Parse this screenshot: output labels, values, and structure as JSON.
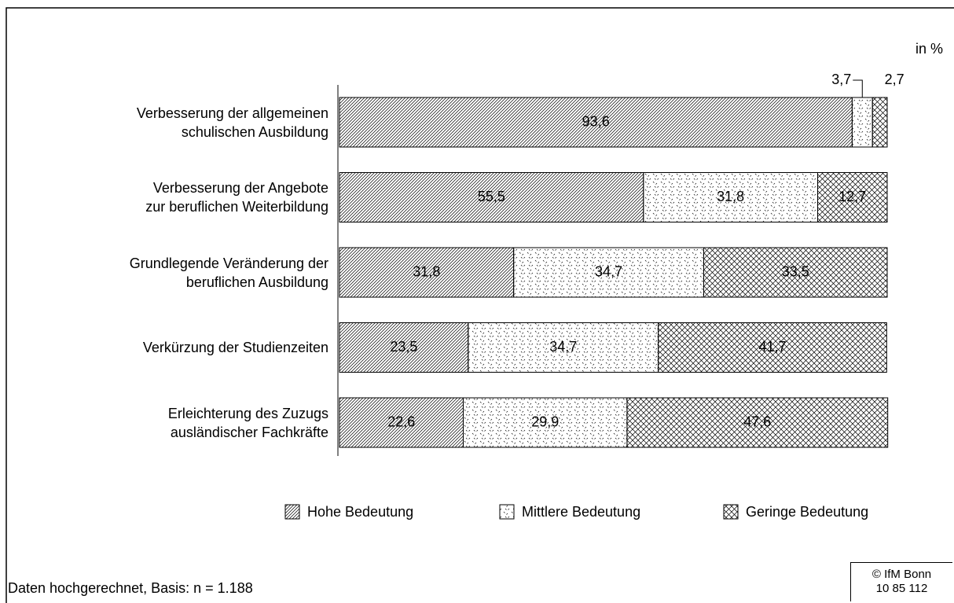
{
  "chart_data": {
    "type": "stacked-bar-horizontal",
    "unit_note": "in %",
    "footnote": "Daten hochgerechnet, Basis: n = 1.188",
    "source": "© IfM Bonn\n10 85 112",
    "categories": [
      "Verbesserung der allgemeinen\nschulischen Ausbildung",
      "Verbesserung der Angebote\nzur beruflichen Weiterbildung",
      "Grundlegende Veränderung der\nberuflichen Ausbildung",
      "Verkürzung der Studienzeiten",
      "Erleichterung des Zuzugs\nausländischer Fachkräfte"
    ],
    "series": [
      {
        "name": "Hohe Bedeutung",
        "color": "#000000",
        "pattern": "hatch",
        "values": [
          93.6,
          55.5,
          31.8,
          23.5,
          22.6
        ],
        "value_labels": [
          "93,6",
          "55,5",
          "31,8",
          "23,5",
          "22,6"
        ]
      },
      {
        "name": "Mittlere Bedeutung",
        "color": "#000000",
        "pattern": "dots",
        "values": [
          3.7,
          31.8,
          34.7,
          34.7,
          29.9
        ],
        "value_labels": [
          "3,7",
          "31,8",
          "34,7",
          "34,7",
          "29,9"
        ]
      },
      {
        "name": "Geringe Bedeutung",
        "color": "#000000",
        "pattern": "cross",
        "values": [
          2.7,
          12.7,
          33.5,
          41.7,
          47.6
        ],
        "value_labels": [
          "2,7",
          "12,7",
          "33,5",
          "41,7",
          "47,6"
        ]
      }
    ],
    "xlim": [
      0,
      100
    ],
    "legend": "bottom"
  }
}
